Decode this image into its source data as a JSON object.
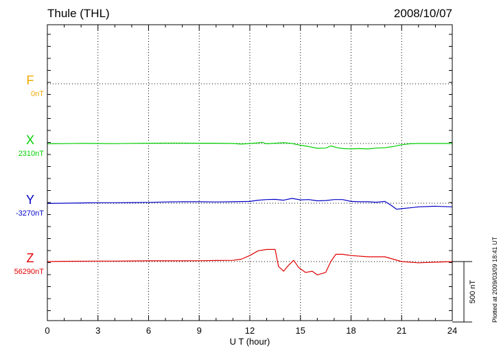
{
  "header": {
    "station": "Thule (THL)",
    "date": "2008/10/07"
  },
  "footer_note": "Plotted at 2009/03/09 18:41 UT",
  "chart_data": {
    "type": "line",
    "title": "Thule (THL)",
    "xlabel": "U T (hour)",
    "xlim": [
      0,
      24
    ],
    "x_ticks": [
      "0",
      "3",
      "6",
      "9",
      "12",
      "15",
      "18",
      "21",
      "24"
    ],
    "scale_bar_label": "500 nT",
    "grid": true,
    "series": [
      {
        "name": "F",
        "baseline_label": "0nT",
        "color": "#f0a800",
        "x": [],
        "values": []
      },
      {
        "name": "X",
        "baseline_label": "2310nT",
        "color": "#00d000",
        "x": [
          0,
          1,
          2,
          3,
          4,
          5,
          6,
          7,
          8,
          9,
          10,
          11,
          11.5,
          12,
          12.5,
          12.7,
          13,
          13.5,
          14,
          14.5,
          15,
          15.5,
          16,
          16.5,
          16.8,
          17.2,
          17.5,
          18,
          18.5,
          19,
          19.5,
          20,
          20.5,
          21,
          21.5,
          22,
          23,
          24
        ],
        "values": [
          2308,
          2309,
          2311,
          2310,
          2309,
          2311,
          2312,
          2313,
          2313,
          2312,
          2312,
          2310,
          2305,
          2310,
          2315,
          2320,
          2308,
          2312,
          2316,
          2310,
          2295,
          2285,
          2270,
          2272,
          2290,
          2275,
          2268,
          2265,
          2268,
          2265,
          2272,
          2275,
          2285,
          2300,
          2308,
          2310,
          2310,
          2310
        ]
      },
      {
        "name": "Y",
        "baseline_label": "-3270nT",
        "color": "#0000c8",
        "x": [
          0,
          1,
          2,
          3,
          4,
          5,
          6,
          7,
          8,
          9,
          10,
          11,
          12,
          12.5,
          13,
          13.5,
          14,
          14.5,
          15,
          15.5,
          16,
          16.5,
          17,
          17.5,
          18,
          18.5,
          19,
          19.5,
          20,
          20.3,
          20.7,
          21,
          21.5,
          22,
          23,
          24
        ],
        "values": [
          -3272,
          -3270,
          -3268,
          -3266,
          -3266,
          -3265,
          -3263,
          -3260,
          -3258,
          -3258,
          -3260,
          -3258,
          -3255,
          -3245,
          -3240,
          -3238,
          -3245,
          -3230,
          -3242,
          -3240,
          -3250,
          -3248,
          -3240,
          -3240,
          -3255,
          -3258,
          -3258,
          -3262,
          -3255,
          -3280,
          -3320,
          -3315,
          -3308,
          -3300,
          -3295,
          -3300
        ]
      },
      {
        "name": "Z",
        "baseline_label": "56290nT",
        "color": "#e00000",
        "x": [
          0,
          1,
          2,
          3,
          4,
          5,
          6,
          7,
          8,
          9,
          10,
          11,
          11.5,
          12,
          12.5,
          13,
          13.5,
          13.7,
          14,
          14.3,
          14.6,
          14.9,
          15.3,
          15.7,
          16,
          16.5,
          16.8,
          17.1,
          17.5,
          18,
          19,
          20,
          20.5,
          21,
          22,
          23,
          24
        ],
        "values": [
          56290,
          56292,
          56293,
          56294,
          56294,
          56295,
          56296,
          56296,
          56296,
          56297,
          56299,
          56300,
          56310,
          56340,
          56380,
          56390,
          56390,
          56250,
          56210,
          56260,
          56300,
          56240,
          56200,
          56210,
          56180,
          56200,
          56290,
          56350,
          56350,
          56340,
          56330,
          56330,
          56310,
          56290,
          56280,
          56285,
          56290
        ]
      }
    ]
  }
}
